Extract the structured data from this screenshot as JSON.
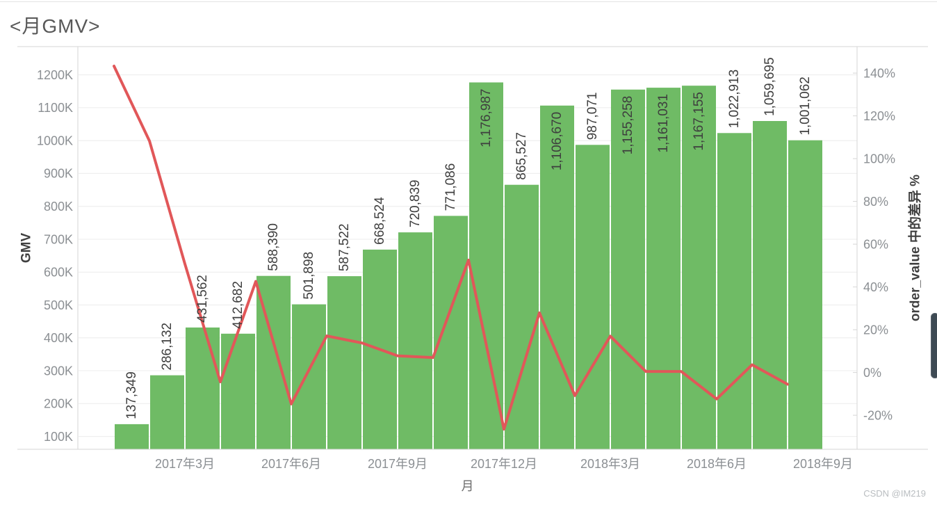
{
  "page": {
    "title": "<月GMV>",
    "watermark": "CSDN @IM219"
  },
  "colors": {
    "bar": "#6FBB65",
    "line": "#E15759",
    "grid": "#ECECEC",
    "axis_line": "#D6D6D6",
    "tick_label": "#8B8F93",
    "bar_label": "#3E3E3E",
    "axis_title": "#3F3F3F",
    "x_axis_title": "#6E6E6E",
    "scrollbar": "#3E4A54"
  },
  "chart_data": {
    "type": "bar",
    "subtype": "dual-axis combo: monthly GMV bars (left axis) + month-over-month % difference line (right axis)",
    "title": "<月GMV>",
    "categories": [
      "2017-01",
      "2017-02",
      "2017-03",
      "2017-04",
      "2017-05",
      "2017-06",
      "2017-07",
      "2017-08",
      "2017-09",
      "2017-10",
      "2017-11",
      "2017-12",
      "2018-01",
      "2018-02",
      "2018-03",
      "2018-04",
      "2018-05",
      "2018-06",
      "2018-07",
      "2018-08"
    ],
    "series": [
      {
        "name": "GMV",
        "type": "bar",
        "axis": "left",
        "values": [
          137349,
          286132,
          431562,
          412682,
          588390,
          501898,
          587522,
          668524,
          720839,
          771086,
          1176987,
          865527,
          1106670,
          987071,
          1155258,
          1161031,
          1167155,
          1022913,
          1059695,
          1001062
        ],
        "value_labels": [
          "137,349",
          "286,132",
          "431,562",
          "412,682",
          "588,390",
          "501,898",
          "587,522",
          "668,524",
          "720,839",
          "771,086",
          "1,176,987",
          "865,527",
          "1,106,670",
          "987,071",
          "1,155,258",
          "1,161,031",
          "1,167,155",
          "1,022,913",
          "1,059,695",
          "1,001,062"
        ],
        "labels_inside_indices": [
          10,
          12,
          14,
          15,
          16
        ]
      },
      {
        "name": "order_value 中的差异 %",
        "type": "line",
        "axis": "right",
        "values_pct": [
          143.3,
          108.3,
          50.8,
          -4.4,
          42.6,
          -14.7,
          17.1,
          13.8,
          7.8,
          7.0,
          52.6,
          -26.5,
          27.9,
          -10.8,
          17.0,
          0.5,
          0.5,
          -12.4,
          3.6,
          -5.5
        ]
      }
    ],
    "x_axis": {
      "title": "月",
      "tick_labels": [
        "2017年3月",
        "2017年6月",
        "2017年9月",
        "2017年12月",
        "2018年3月",
        "2018年6月",
        "2018年9月"
      ],
      "tick_at_bar_start_index": [
        2,
        5,
        8,
        11,
        14,
        17,
        20
      ]
    },
    "y_axis_left": {
      "title": "GMV",
      "tick_labels": [
        "100K",
        "200K",
        "300K",
        "400K",
        "500K",
        "600K",
        "700K",
        "800K",
        "900K",
        "1000K",
        "1100K",
        "1200K"
      ],
      "tick_values": [
        100000,
        200000,
        300000,
        400000,
        500000,
        600000,
        700000,
        800000,
        900000,
        1000000,
        1100000,
        1200000
      ],
      "range": [
        61000,
        1286000
      ]
    },
    "y_axis_right": {
      "title": "order_value 中的差异 %",
      "tick_labels": [
        "-20%",
        "0%",
        "20%",
        "40%",
        "60%",
        "80%",
        "100%",
        "120%",
        "140%"
      ],
      "tick_values": [
        -20,
        0,
        20,
        40,
        60,
        80,
        100,
        120,
        140
      ],
      "range": [
        -35.9,
        152.4
      ]
    },
    "grid": true,
    "legend": "none"
  }
}
